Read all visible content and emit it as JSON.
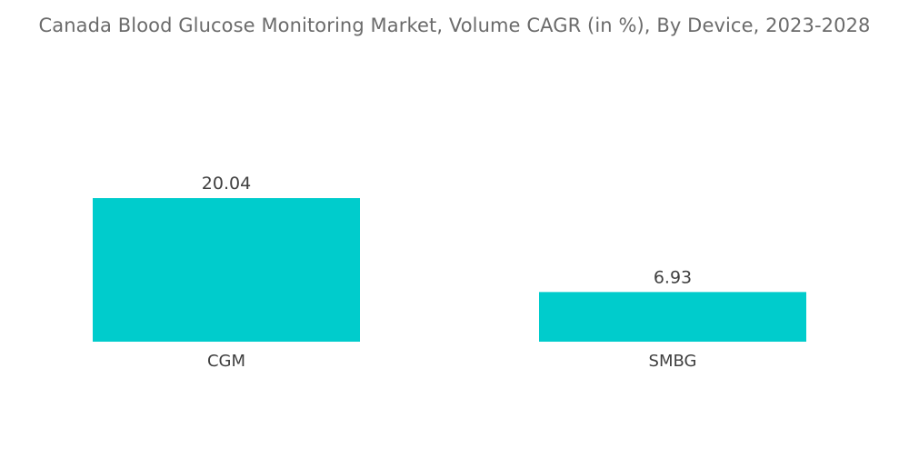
{
  "chart_data": {
    "type": "bar",
    "title": "Canada Blood Glucose Monitoring Market, Volume CAGR (in %), By Device, 2023-2028",
    "categories": [
      "CGM",
      "SMBG"
    ],
    "values": [
      20.04,
      6.93
    ],
    "value_labels": [
      "20.04",
      "6.93"
    ],
    "xlabel": "",
    "ylabel": "",
    "ylim": [
      0,
      20.04
    ],
    "grid": false,
    "legend": "none",
    "bar_color": "#00cccc"
  }
}
